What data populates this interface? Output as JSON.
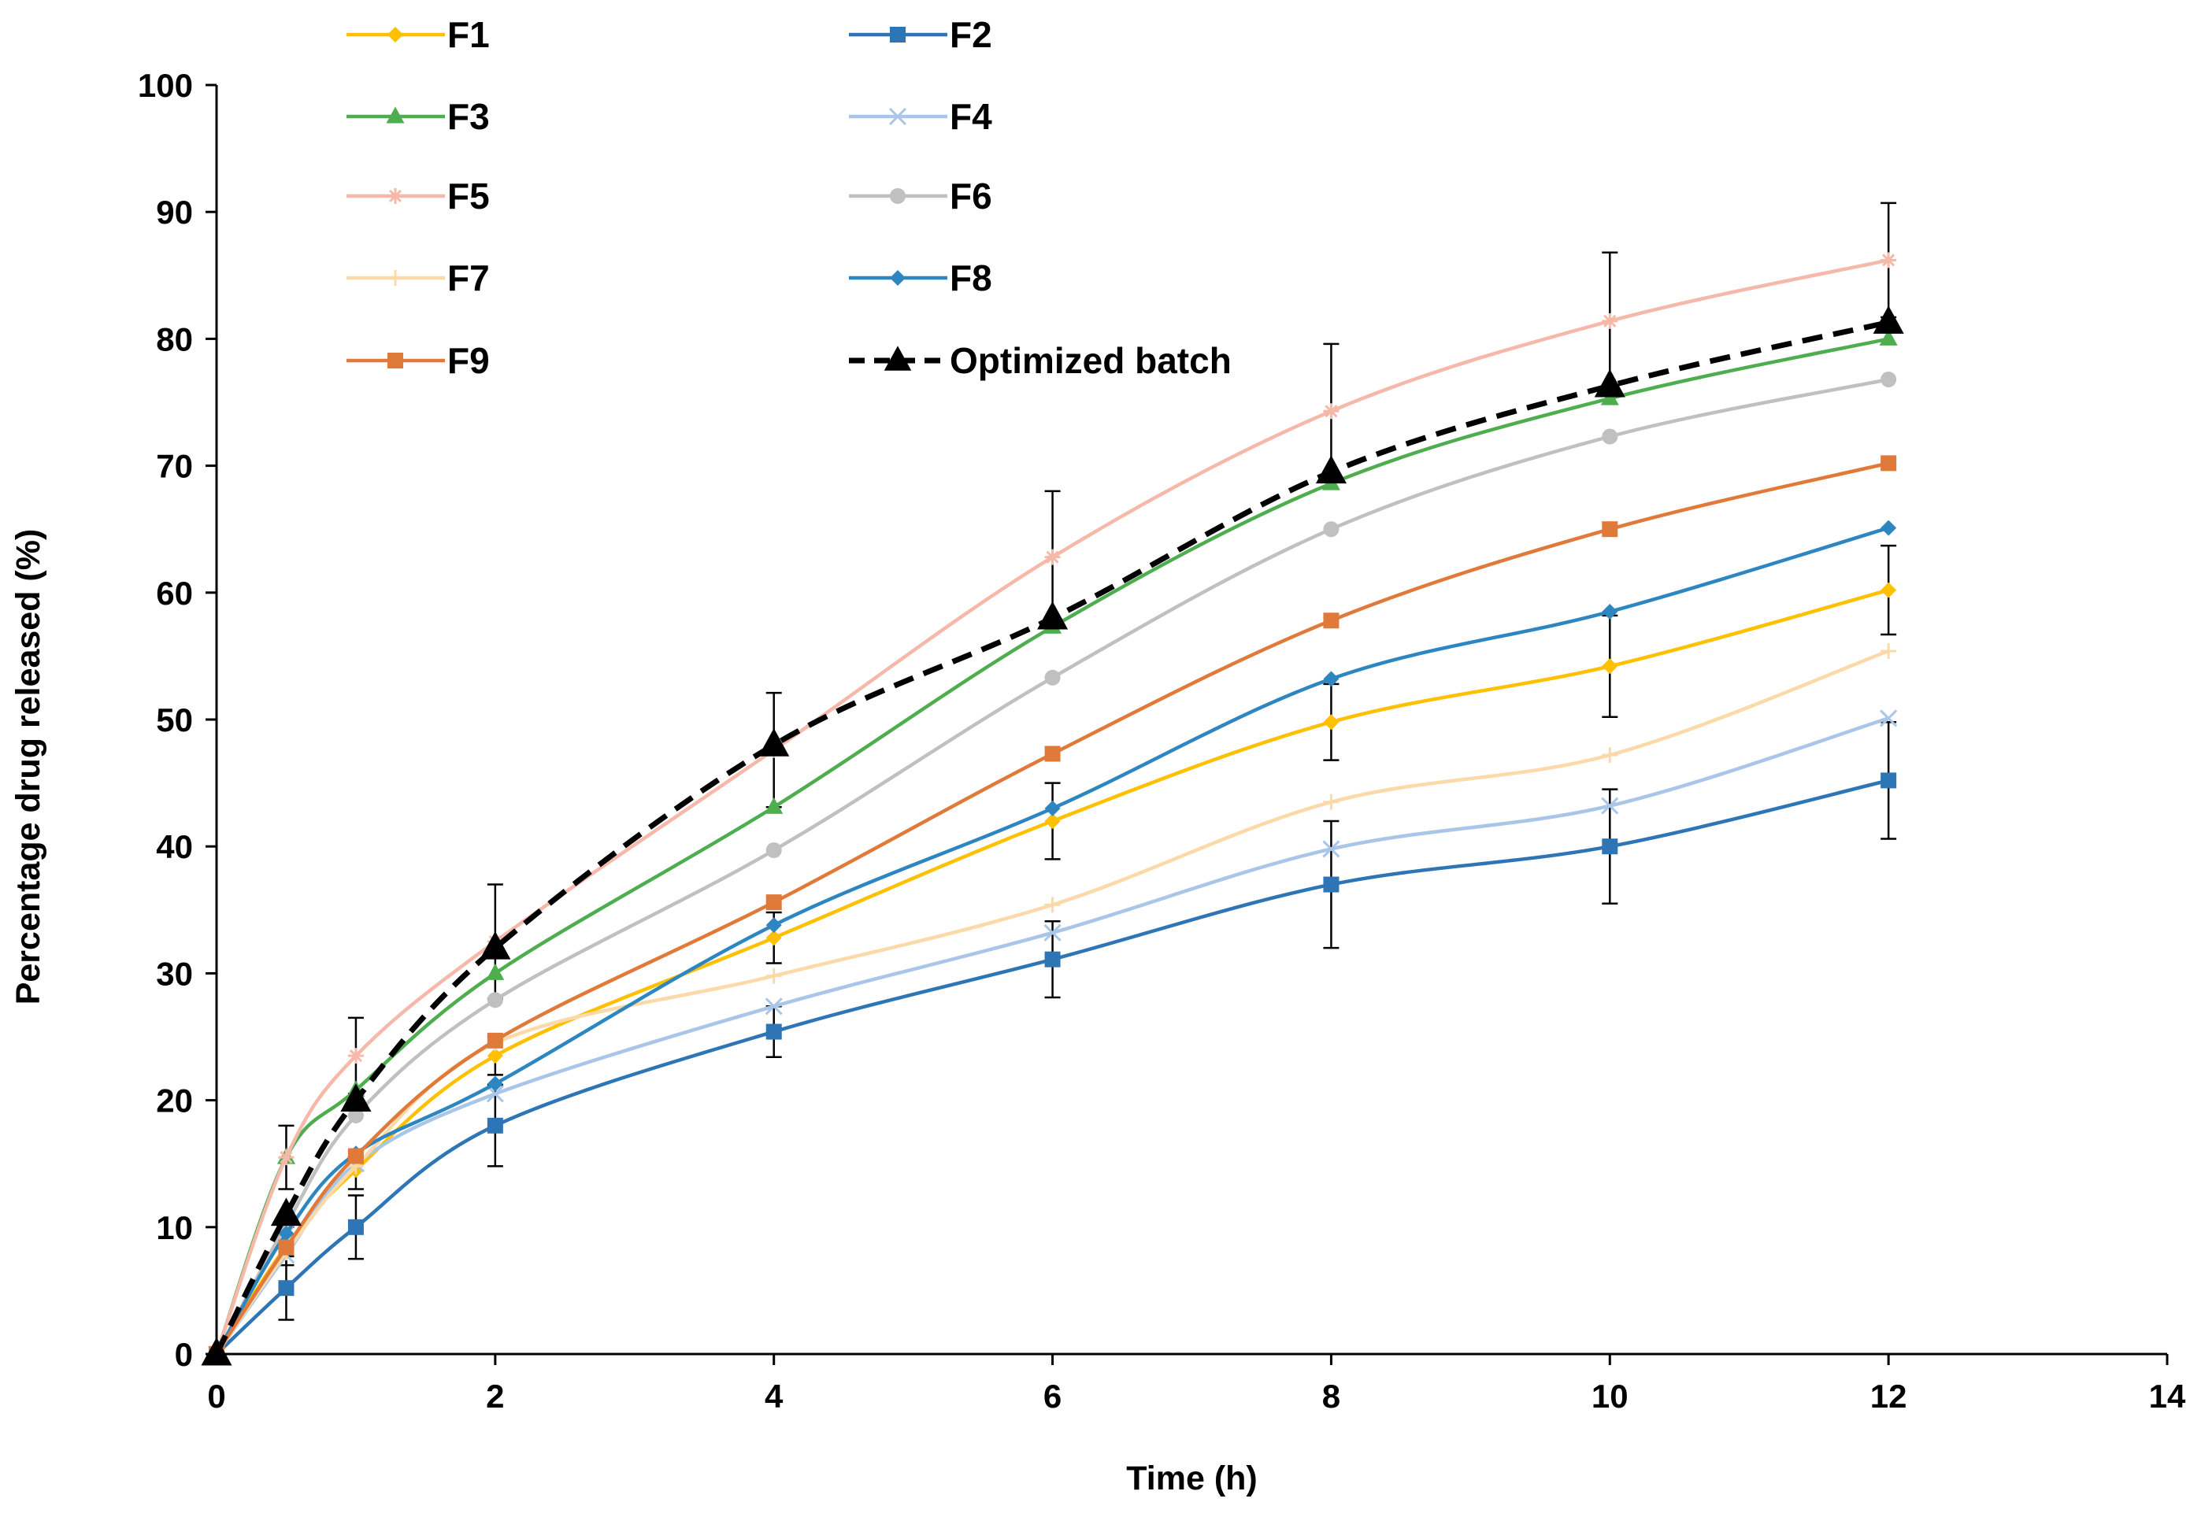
{
  "chart_data": {
    "type": "line",
    "title": "",
    "xlabel": "Time (h)",
    "ylabel": "Percentage drug released (%)",
    "xlim": [
      0,
      14
    ],
    "ylim": [
      0,
      100
    ],
    "xticks": [
      0,
      2,
      4,
      6,
      8,
      10,
      12,
      14
    ],
    "yticks": [
      0,
      10,
      20,
      30,
      40,
      50,
      60,
      70,
      80,
      90,
      100
    ],
    "grid": false,
    "legend_position": "top",
    "x": [
      0,
      0.5,
      1,
      2,
      4,
      6,
      8,
      10,
      12
    ],
    "series": [
      {
        "name": "F1",
        "color": "#ffc000",
        "marker": "diamond",
        "dashed": false,
        "values": [
          0,
          8.5,
          14.5,
          23.5,
          32.8,
          42,
          49.8,
          54.2,
          60.2
        ],
        "errors": [
          0,
          1.5,
          1.5,
          1.5,
          2,
          3,
          3,
          4,
          3.5
        ]
      },
      {
        "name": "F2",
        "color": "#2e75b6",
        "marker": "square",
        "dashed": false,
        "values": [
          0,
          5.2,
          10,
          18,
          25.4,
          31.1,
          37,
          40,
          45.2
        ],
        "errors": [
          0,
          2.5,
          2.5,
          3.2,
          2,
          3,
          5,
          4.5,
          4.6
        ]
      },
      {
        "name": "F3",
        "color": "#4ead4e",
        "marker": "triangle",
        "dashed": false,
        "values": [
          0,
          15.5,
          20.8,
          30,
          43.1,
          57.3,
          68.6,
          75.3,
          80
        ]
      },
      {
        "name": "F4",
        "color": "#a9c6e8",
        "marker": "x",
        "dashed": false,
        "values": [
          0,
          7.8,
          15,
          20.5,
          27.4,
          33.2,
          39.8,
          43.2,
          50.1
        ]
      },
      {
        "name": "F5",
        "color": "#f6b8a9",
        "marker": "asterisk",
        "dashed": false,
        "values": [
          0,
          15.5,
          23.5,
          32.5,
          47.6,
          62.8,
          74.3,
          81.4,
          86.2
        ],
        "errors": [
          0,
          2.5,
          3,
          4.5,
          4.5,
          5.2,
          5.3,
          5.4,
          4.5
        ]
      },
      {
        "name": "F6",
        "color": "#c0c0c0",
        "marker": "circle",
        "dashed": false,
        "values": [
          0,
          10.2,
          18.8,
          27.9,
          39.7,
          53.3,
          65,
          72.3,
          76.8
        ]
      },
      {
        "name": "F7",
        "color": "#fbd9a8",
        "marker": "plus",
        "dashed": false,
        "values": [
          0,
          8,
          14.8,
          24.5,
          29.8,
          35.4,
          43.5,
          47.2,
          55.4
        ]
      },
      {
        "name": "F8",
        "color": "#2e86c1",
        "marker": "diamond",
        "dashed": false,
        "values": [
          0,
          9.5,
          15.8,
          21.3,
          33.8,
          43,
          53.2,
          58.5,
          65.1
        ]
      },
      {
        "name": "F9",
        "color": "#e07a3a",
        "marker": "square",
        "dashed": false,
        "values": [
          0,
          8.4,
          15.6,
          24.7,
          35.6,
          47.3,
          57.8,
          65,
          70.2
        ]
      },
      {
        "name": "Optimized batch",
        "color": "#000000",
        "marker": "triangle",
        "dashed": true,
        "values": [
          0,
          11,
          20,
          32,
          48,
          58,
          69.5,
          76.3,
          81.3
        ]
      }
    ]
  }
}
